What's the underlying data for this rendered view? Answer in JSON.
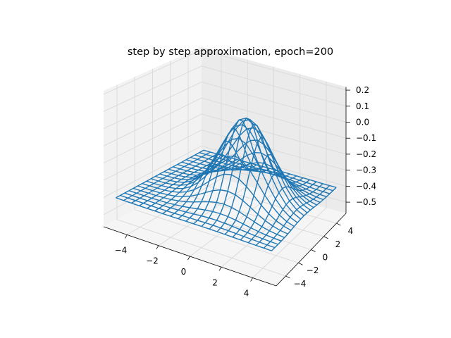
{
  "chart_data": {
    "type": "wireframe-3d",
    "title": "step by step approximation, epoch=200",
    "xlabel": "",
    "ylabel": "",
    "zlabel": "",
    "xlim": [
      -5.5,
      5.5
    ],
    "ylim": [
      -5.5,
      5.5
    ],
    "zlim": [
      -0.57,
      0.22
    ],
    "x_ticks": [
      -4,
      -2,
      0,
      2,
      4
    ],
    "y_ticks": [
      -4,
      -2,
      0,
      2,
      4
    ],
    "z_ticks": [
      -0.5,
      -0.4,
      -0.3,
      -0.2,
      -0.1,
      0.0,
      0.1,
      0.2
    ],
    "x_tick_labels": [
      "−4",
      "−2",
      "0",
      "2",
      "4"
    ],
    "y_tick_labels": [
      "−4",
      "−2",
      "0",
      "2",
      "4"
    ],
    "z_tick_labels": [
      "−0.5",
      "−0.4",
      "−0.3",
      "−0.2",
      "−0.1",
      "0.0",
      "0.1",
      "0.2"
    ],
    "grid": true,
    "surface": {
      "x_range": [
        -5,
        5
      ],
      "y_range": [
        -5,
        5
      ],
      "points_per_side": 21,
      "function": "z = -0.4 + 0.5 * exp(-((x - 1)^2 + y^2) / 5)",
      "peak_z": 0.1,
      "edge_z": -0.4
    },
    "colors": {
      "wire": "#1f77b4",
      "pane_left": "#f2f2f2",
      "pane_right": "#ebebeb",
      "pane_floor": "#f5f5f5",
      "grid": "#d9d9d9"
    }
  }
}
